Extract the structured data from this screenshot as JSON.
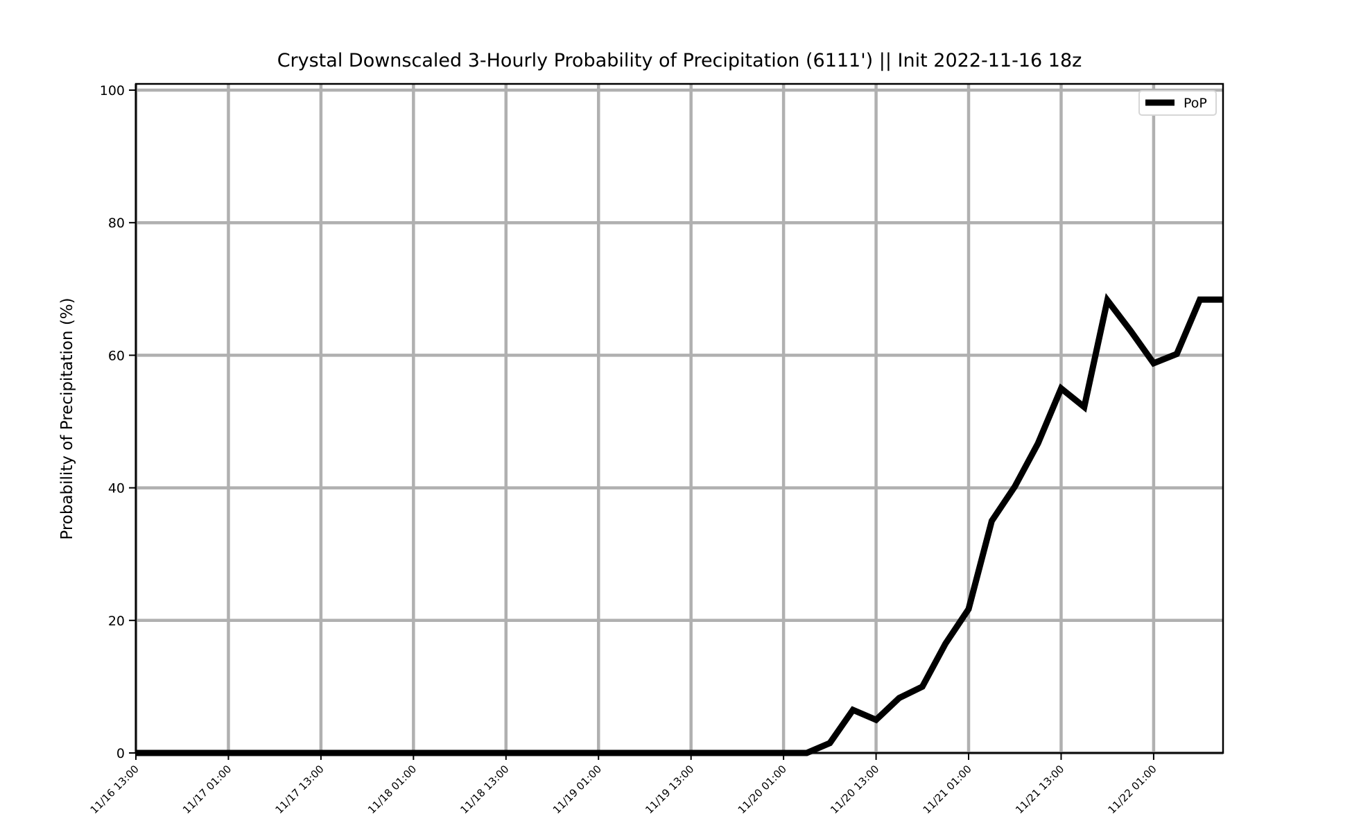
{
  "chart_data": {
    "type": "line",
    "title": "Crystal Downscaled 3-Hourly Probability of Precipitation (6111') || Init 2022-11-16 18z",
    "xlabel": "",
    "ylabel": "Probability of Precipitation (%)",
    "ylim": [
      0,
      100
    ],
    "xlim": [
      "11/16 13:00",
      "11/22 10:00"
    ],
    "y_ticks": [
      0,
      20,
      40,
      60,
      80,
      100
    ],
    "x_ticks": [
      "11/16 13:00",
      "11/17 01:00",
      "11/17 13:00",
      "11/18 01:00",
      "11/18 13:00",
      "11/19 01:00",
      "11/19 13:00",
      "11/20 01:00",
      "11/20 13:00",
      "11/21 01:00",
      "11/21 13:00",
      "11/22 01:00"
    ],
    "grid": true,
    "legend_position": "top-right",
    "series": [
      {
        "name": "PoP",
        "color": "#000000",
        "x": [
          "11/16 13:00",
          "11/16 16:00",
          "11/16 19:00",
          "11/16 22:00",
          "11/17 01:00",
          "11/17 04:00",
          "11/17 07:00",
          "11/17 10:00",
          "11/17 13:00",
          "11/17 16:00",
          "11/17 19:00",
          "11/17 22:00",
          "11/18 01:00",
          "11/18 04:00",
          "11/18 07:00",
          "11/18 10:00",
          "11/18 13:00",
          "11/18 16:00",
          "11/18 19:00",
          "11/18 22:00",
          "11/19 01:00",
          "11/19 04:00",
          "11/19 07:00",
          "11/19 10:00",
          "11/19 13:00",
          "11/19 16:00",
          "11/19 19:00",
          "11/19 22:00",
          "11/20 01:00",
          "11/20 04:00",
          "11/20 07:00",
          "11/20 10:00",
          "11/20 13:00",
          "11/20 16:00",
          "11/20 19:00",
          "11/20 22:00",
          "11/21 01:00",
          "11/21 04:00",
          "11/21 07:00",
          "11/21 10:00",
          "11/21 13:00",
          "11/21 16:00",
          "11/21 19:00",
          "11/21 22:00",
          "11/22 01:00",
          "11/22 04:00",
          "11/22 07:00",
          "11/22 10:00"
        ],
        "values": [
          0,
          0,
          0,
          0,
          0,
          0,
          0,
          0,
          0,
          0,
          0,
          0,
          0,
          0,
          0,
          0,
          0,
          0,
          0,
          0,
          0,
          0,
          0,
          0,
          0,
          0,
          0,
          0,
          0,
          0,
          1.5,
          6.5,
          5,
          8.3,
          10,
          16.5,
          21.7,
          35,
          40.2,
          46.7,
          55,
          52.2,
          68.3,
          63.7,
          58.8,
          60.2,
          68.4,
          68.4
        ]
      }
    ]
  }
}
